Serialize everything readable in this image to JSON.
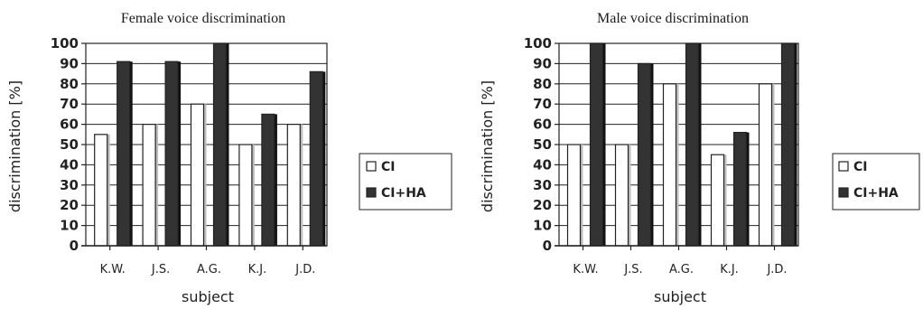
{
  "chart_data": [
    {
      "type": "bar",
      "title": "Female voice discrimination",
      "xlabel": "subject",
      "ylabel": "discrimination  [%]",
      "ylim": [
        0,
        100
      ],
      "yticks": [
        "0",
        "10",
        "20",
        "30",
        "40",
        "50",
        "60",
        "70",
        "80",
        "90",
        "100"
      ],
      "categories": [
        "K.W.",
        "J.S.",
        "A.G.",
        "K.J.",
        "J.D."
      ],
      "grid": true,
      "legend": "right",
      "series": [
        {
          "name": "CI",
          "color": "#ffffff",
          "values": [
            55,
            60,
            70,
            50,
            60
          ]
        },
        {
          "name": "CI+HA",
          "color": "#333333",
          "values": [
            91,
            91,
            100,
            65,
            86
          ]
        }
      ]
    },
    {
      "type": "bar",
      "title": "Male voice discrimination",
      "xlabel": "subject",
      "ylabel": "discrimination  [%]",
      "ylim": [
        0,
        100
      ],
      "yticks": [
        "0",
        "10",
        "20",
        "30",
        "40",
        "50",
        "60",
        "70",
        "80",
        "90",
        "100"
      ],
      "categories": [
        "K.W.",
        "J.S.",
        "A.G.",
        "K.J.",
        "J.D."
      ],
      "grid": true,
      "legend": "right",
      "series": [
        {
          "name": "CI",
          "color": "#ffffff",
          "values": [
            50,
            50,
            80,
            45,
            80
          ]
        },
        {
          "name": "CI+HA",
          "color": "#333333",
          "values": [
            100,
            90,
            100,
            56,
            100
          ]
        }
      ]
    }
  ]
}
